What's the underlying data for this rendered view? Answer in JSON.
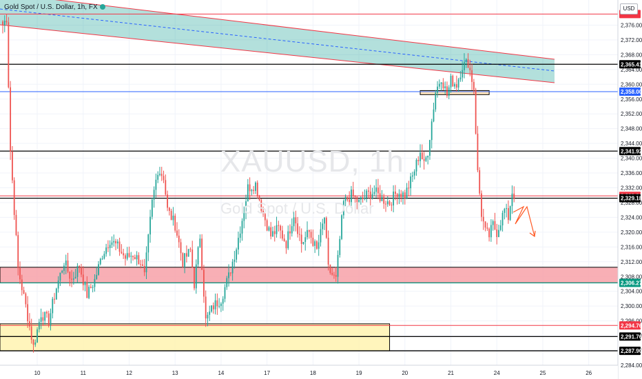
{
  "header": {
    "title": "Gold Spot / U.S. Dollar, 1h, FX",
    "currency": "USD"
  },
  "watermark": {
    "symbol": "XAUUSD, 1h",
    "name": "Gold Spot / U.S. Dollar"
  },
  "chart_data": {
    "type": "candlestick",
    "symbol": "XAUUSD",
    "timeframe": "1h",
    "ylim": [
      2284,
      2380
    ],
    "y_ticks": [
      2284,
      2288,
      2292,
      2296,
      2300,
      2304,
      2308,
      2312,
      2316,
      2320,
      2324,
      2328,
      2332,
      2336,
      2340,
      2344,
      2348,
      2352,
      2356,
      2360,
      2364,
      2368,
      2372,
      2376
    ],
    "y_tick_labels": [
      "2,284.00",
      "2,288.00",
      "2,292.00",
      "2,296.00",
      "2,300.00",
      "2,304.00",
      "2,308.00",
      "2,312.00",
      "2,316.00",
      "2,320.00",
      "2,324.00",
      "2,328.00",
      "2,332.00",
      "2,336.00",
      "2,340.00",
      "2,344.00",
      "2,348.00",
      "2,352.00",
      "2,356.00",
      "2,360.00",
      "2,364.00",
      "2,368.00",
      "2,372.00",
      "2,376.00"
    ],
    "x_ticks": [
      "10",
      "11",
      "12",
      "13",
      "14",
      "17",
      "18",
      "19",
      "20",
      "21",
      "24",
      "25",
      "26"
    ],
    "x_tick_idx": [
      18,
      42,
      66,
      90,
      114,
      138,
      162,
      186,
      210,
      234,
      258,
      282,
      306
    ],
    "candle_colors": {
      "up": "#26a69a",
      "down": "#ef5350"
    },
    "anchors": [
      [
        0,
        2376
      ],
      [
        2,
        2378
      ],
      [
        4,
        2342
      ],
      [
        8,
        2310
      ],
      [
        12,
        2300
      ],
      [
        16,
        2289
      ],
      [
        20,
        2298
      ],
      [
        24,
        2296
      ],
      [
        28,
        2305
      ],
      [
        32,
        2312
      ],
      [
        36,
        2307
      ],
      [
        40,
        2311
      ],
      [
        44,
        2303
      ],
      [
        48,
        2307
      ],
      [
        52,
        2314
      ],
      [
        56,
        2318
      ],
      [
        60,
        2316
      ],
      [
        64,
        2313
      ],
      [
        68,
        2314
      ],
      [
        72,
        2312
      ],
      [
        74,
        2308
      ],
      [
        78,
        2328
      ],
      [
        81,
        2337
      ],
      [
        84,
        2335
      ],
      [
        86,
        2326
      ],
      [
        90,
        2322
      ],
      [
        94,
        2312
      ],
      [
        98,
        2315
      ],
      [
        100,
        2306
      ],
      [
        103,
        2319
      ],
      [
        106,
        2296
      ],
      [
        110,
        2300
      ],
      [
        114,
        2302
      ],
      [
        118,
        2308
      ],
      [
        122,
        2316
      ],
      [
        126,
        2326
      ],
      [
        128,
        2332
      ],
      [
        132,
        2333
      ],
      [
        136,
        2325
      ],
      [
        140,
        2319
      ],
      [
        144,
        2321
      ],
      [
        148,
        2317
      ],
      [
        152,
        2325
      ],
      [
        156,
        2317
      ],
      [
        160,
        2320
      ],
      [
        164,
        2315
      ],
      [
        168,
        2324
      ],
      [
        170,
        2310
      ],
      [
        174,
        2307
      ],
      [
        176,
        2318
      ],
      [
        178,
        2328
      ],
      [
        182,
        2330
      ],
      [
        186,
        2328
      ],
      [
        190,
        2330
      ],
      [
        194,
        2331
      ],
      [
        198,
        2329
      ],
      [
        202,
        2328
      ],
      [
        206,
        2331
      ],
      [
        210,
        2330
      ],
      [
        214,
        2335
      ],
      [
        218,
        2342
      ],
      [
        220,
        2338
      ],
      [
        222,
        2342
      ],
      [
        224,
        2350
      ],
      [
        226,
        2358
      ],
      [
        229,
        2362
      ],
      [
        232,
        2357
      ],
      [
        234,
        2361
      ],
      [
        237,
        2360
      ],
      [
        240,
        2365
      ],
      [
        243,
        2366
      ],
      [
        246,
        2359
      ],
      [
        248,
        2336
      ],
      [
        250,
        2325
      ],
      [
        252,
        2320
      ],
      [
        254,
        2319
      ],
      [
        256,
        2322
      ],
      [
        258,
        2320
      ],
      [
        260,
        2323
      ],
      [
        262,
        2326
      ],
      [
        264,
        2324
      ],
      [
        266,
        2331
      ],
      [
        267,
        2329
      ]
    ],
    "horizontal_levels": [
      {
        "price": 2379.0,
        "label": "",
        "color": "#f23645"
      },
      {
        "price": 2365.41,
        "label": "2,365.41",
        "color": "#000000"
      },
      {
        "price": 2358.0,
        "label": "2,358.00",
        "color": "#2962ff"
      },
      {
        "price": 2341.92,
        "label": "2,341.92",
        "color": "#000000"
      },
      {
        "price": 2329.82,
        "label": "2,329.82",
        "color": "#f23645"
      },
      {
        "price": 2329.18,
        "label": "2,329.18",
        "color": "#000000"
      },
      {
        "price": 2306.27,
        "label": "2,306.27",
        "color": "#089981"
      },
      {
        "price": 2294.76,
        "label": "2,294.76",
        "color": "#f23645"
      },
      {
        "price": 2291.76,
        "label": "2,291.76",
        "color": "#000000"
      },
      {
        "price": 2287.9,
        "label": "2,287.90",
        "color": "#000000"
      }
    ],
    "zones": [
      {
        "name": "resistance-channel",
        "color": "#26a69a"
      },
      {
        "name": "support-zone",
        "price_range": [
          2306.3,
          2310.5
        ],
        "color": "#f7a1a8"
      },
      {
        "name": "demand-zone",
        "price_range": [
          2287.9,
          2295.2
        ],
        "color": "#fff3b0"
      },
      {
        "name": "small-box",
        "price_range": [
          2357.2,
          2358.3
        ],
        "color": "#ffe0b2"
      }
    ],
    "projection": {
      "color": "#ff5722"
    }
  }
}
